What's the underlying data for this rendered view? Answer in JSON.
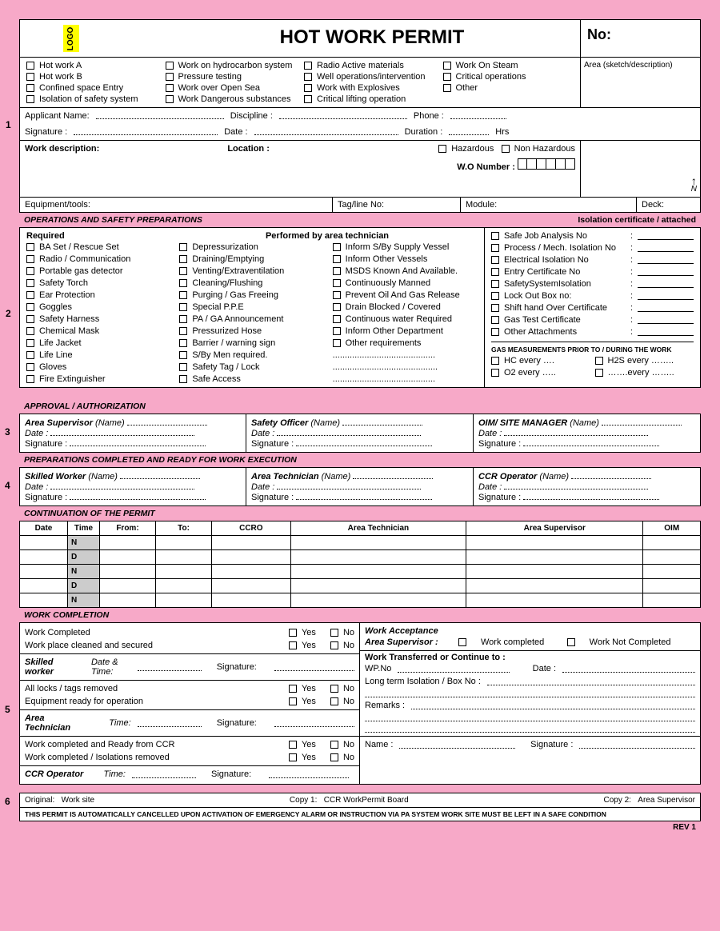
{
  "logo": "LOGO",
  "title": "HOT WORK PERMIT",
  "no_label": "No:",
  "sketch_label": "Area (sketch/description)",
  "north": "N",
  "checkboxes": {
    "c1": [
      "Hot work A",
      "Work on hydrocarbon system",
      "Radio Active materials",
      "Work On Steam"
    ],
    "c2": [
      "Hot work B",
      "Pressure testing",
      "Well operations/intervention",
      "Critical operations"
    ],
    "c3": [
      "Confined space Entry",
      "Work over  Open Sea",
      "Work with Explosives",
      "Other"
    ],
    "c4": [
      "Isolation of safety system",
      "Work  Dangerous substances",
      "Critical lifting operation",
      ""
    ]
  },
  "sec1": {
    "applicant": "Applicant Name:",
    "discipline": "Discipline :",
    "phone": "Phone   :",
    "signature": "Signature :",
    "date": "Date     :",
    "duration": "Duration :",
    "hrs": "Hrs",
    "workdesc": "Work description:",
    "location": "Location :",
    "hazardous": "Hazardous",
    "nonhaz": "Non Hazardous",
    "wo": "W.O Number :"
  },
  "row_tools": {
    "equip": "Equipment/tools:",
    "tag": "Tag/line No:",
    "module": "Module:",
    "deck": "Deck:"
  },
  "ops_title": "OPERATIONS AND SAFETY PREPARATIONS",
  "iso_title": "Isolation certificate /  attached",
  "ops_left_header": [
    "Required",
    "Performed by area technician"
  ],
  "ops_col1": [
    "BA Set / Rescue Set",
    "Radio / Communication",
    "Portable gas detector",
    "Safety Torch",
    "Ear Protection",
    "Goggles",
    "Safety Harness",
    "Chemical Mask",
    "Life Jacket",
    "Life Line",
    "Gloves",
    "Fire Extinguisher"
  ],
  "ops_col2": [
    "Depressurization",
    "Draining/Emptying",
    "Venting/Extraventilation",
    "Cleaning/Flushing",
    "Purging / Gas Freeing",
    "Special P.P.E",
    "PA / GA Announcement",
    "Pressurized Hose",
    "Barrier / warning sign",
    "S/By Men required.",
    "Safety Tag / Lock",
    "Safe Access"
  ],
  "ops_col3": [
    "Inform S/By Supply Vessel",
    "Inform Other Vessels",
    "MSDS Known And Available.",
    "Continuously Manned",
    "Prevent Oil And Gas Release",
    "Drain Blocked / Covered",
    "Continuous water Required",
    "Inform Other Department",
    "Other requirements",
    "..........................................",
    "...........................................",
    ".........................................."
  ],
  "iso_items": [
    "Safe Job Analysis No",
    "Process / Mech. Isolation No",
    "Electrical Isolation  No",
    "Entry Certificate No",
    "SafetySystemIsolation",
    "Lock Out Box no:",
    "Shift hand Over Certificate",
    "Gas Test Certificate",
    "Other Attachments"
  ],
  "gas_title": "GAS MEASUREMENTS PRIOR TO / DURING THE WORK",
  "gas": [
    "HC every  ….",
    "H2S every  ……..",
    "O2 every  …..",
    "…….every …….."
  ],
  "approval_title": "APPROVAL / AUTHORIZATION",
  "approval": [
    {
      "role_label": "Area Supervisor",
      "name": "(Name)"
    },
    {
      "role_label": "Safety Officer",
      "name": "(Name)"
    },
    {
      "role_label": "OIM/ SITE MANAGER",
      "name": "(Name)"
    }
  ],
  "date_label": "Date :",
  "sig_label": "Signature :",
  "prep_title": "PREPARATIONS COMPLETED AND  READY FOR WORK EXECUTION",
  "prep": [
    {
      "role_label": "Skilled Worker",
      "name": "(Name)"
    },
    {
      "role_label": "Area Technician",
      "name": "(Name)"
    },
    {
      "role_label": "CCR Operator",
      "name": "(Name)"
    }
  ],
  "cont_title": "CONTINUATION OF THE PERMIT",
  "cont_headers": [
    "Date",
    "Time",
    "From:",
    "To:",
    "CCRO",
    "Area Technician",
    "Area Supervisor",
    "OIM"
  ],
  "cont_nd": [
    "N",
    "D",
    "N",
    "D",
    "N"
  ],
  "completion_title": "WORK COMPLETION",
  "comp_left": {
    "l1": "Work Completed",
    "l2": "Work place cleaned  and  secured",
    "sk": "Skilled worker",
    "dt": "Date & Time:",
    "sig": "Signature:",
    "l3": "All locks / tags removed",
    "l4": "Equipment ready for operation",
    "at": "Area Technician",
    "time": "Time:",
    "l5": "Work completed and Ready from CCR",
    "l6": "Work completed / Isolations  removed",
    "ccr": "CCR Operator"
  },
  "yes": "Yes",
  "no": "No",
  "comp_right": {
    "accept": "Work Acceptance",
    "sup": "Area Supervisor :",
    "wc": "Work completed",
    "wnc": "Work Not Completed",
    "transfer": "Work Transferred or Continue to :",
    "wpno": "WP.No",
    "date": "Date :",
    "long": "Long term Isolation / Box No :",
    "remarks": "Remarks :",
    "name": "Name :",
    "sig": "Signature :"
  },
  "footer": {
    "orig": "Original:",
    "ws": "Work site",
    "c1": "Copy 1:",
    "c1v": "CCR  WorkPermit Board",
    "c2": "Copy 2:",
    "c2v": "Area Supervisor"
  },
  "warning": "THIS PERMIT IS AUTOMATICALLY CANCELLED UPON ACTIVATION OF EMERGENCY ALARM OR INSTRUCTION VIA PA SYSTEM WORK SITE MUST BE LEFT IN A SAFE CONDITION",
  "rev": "REV 1"
}
